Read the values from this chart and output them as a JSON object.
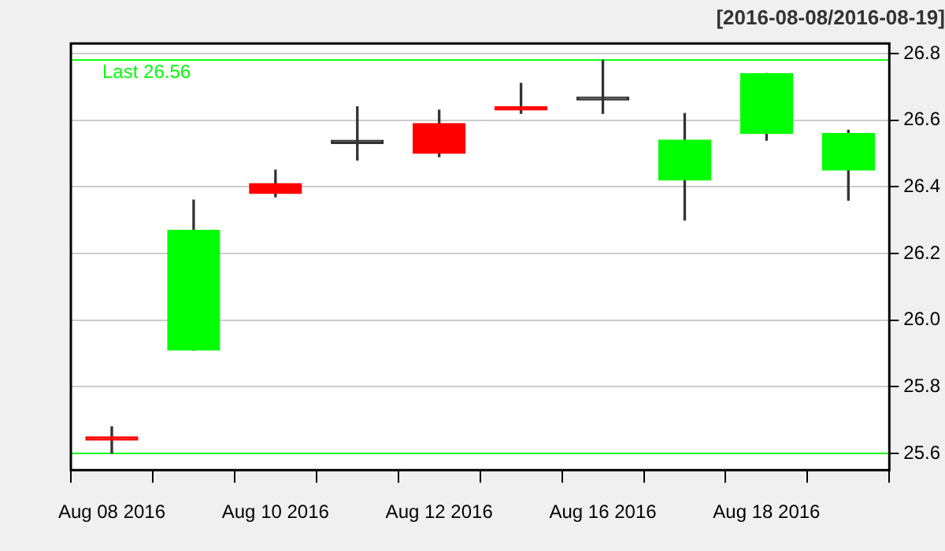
{
  "chart_data": {
    "type": "candlestick",
    "subtitle": "[2016-08-08/2016-08-19]",
    "categories": [
      "Aug 08 2016",
      null,
      "Aug 10 2016",
      null,
      "Aug 12 2016",
      null,
      "Aug 16 2016",
      null,
      "Aug 18 2016",
      null
    ],
    "ohlc": [
      [
        25.65,
        25.68,
        25.6,
        25.64
      ],
      [
        25.91,
        26.36,
        25.91,
        26.27
      ],
      [
        26.41,
        26.45,
        26.37,
        26.38
      ],
      [
        26.53,
        26.64,
        26.48,
        26.53
      ],
      [
        26.59,
        26.63,
        26.49,
        26.5
      ],
      [
        26.64,
        26.71,
        26.62,
        26.63
      ],
      [
        26.66,
        26.78,
        26.62,
        26.66
      ],
      [
        26.42,
        26.62,
        26.3,
        26.54
      ],
      [
        26.56,
        26.74,
        26.54,
        26.74
      ],
      [
        26.45,
        26.57,
        26.36,
        26.56
      ]
    ],
    "colors": [
      "#ff0000",
      "#00ff00",
      "#ff0000",
      "#333333",
      "#ff0000",
      "#ff0000",
      "#333333",
      "#00ff00",
      "#00ff00",
      "#00ff00"
    ],
    "ylim": [
      25.55,
      26.83
    ],
    "yticks": [
      25.6,
      25.8,
      {
        "value": 26,
        "label": "26.0"
      },
      26.2,
      26.4,
      26.6,
      26.8
    ],
    "grid": "y",
    "legend": false,
    "ref_lines": [
      {
        "axis": "y",
        "value": 26.78,
        "label": "Last 26.56",
        "color": "#00ff00"
      },
      {
        "axis": "y",
        "value": 25.6,
        "label": null,
        "color": "#00ff00"
      }
    ]
  }
}
